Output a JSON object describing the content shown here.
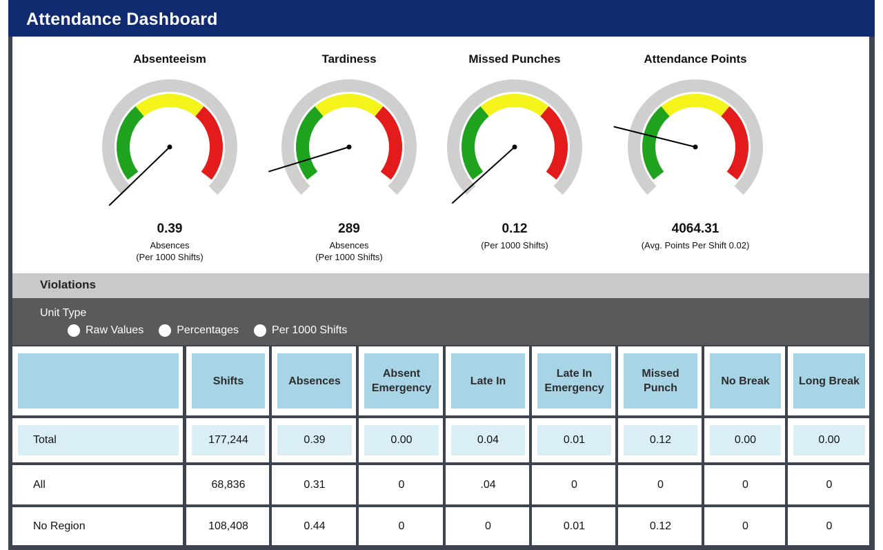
{
  "header": {
    "title": "Attendance Dashboard"
  },
  "colors": {
    "header_bg": "#0f2a6e",
    "gauge_track": "#cfcfcf",
    "gauge_green": "#1fa31f",
    "gauge_yellow": "#f4f41a",
    "gauge_red": "#e31b1b",
    "table_header": "#a8d5e6",
    "table_total": "#daeef6"
  },
  "gauges": [
    {
      "title": "Absenteeism",
      "value": "0.39",
      "sub1": "Absences",
      "sub2": "(Per 1000 Shifts)",
      "needle_angle_deg": 224
    },
    {
      "title": "Tardiness",
      "value": "289",
      "sub1": "Absences",
      "sub2": "(Per 1000 Shifts)",
      "needle_angle_deg": 197
    },
    {
      "title": "Missed Punches",
      "value": "0.12",
      "sub1": "(Per 1000 Shifts)",
      "sub2": "",
      "needle_angle_deg": 222
    },
    {
      "title": "Attendance Points",
      "value": "4064.31",
      "sub1": "(Avg. Points Per Shift 0.02)",
      "sub2": "",
      "needle_angle_deg": 166
    }
  ],
  "violations": {
    "title": "Violations",
    "unit_type_label": "Unit Type",
    "unit_options": [
      "Raw Values",
      "Percentages",
      "Per 1000 Shifts"
    ]
  },
  "table": {
    "columns": [
      "",
      "Shifts",
      "Absences",
      "Absent Emergency",
      "Late In",
      "Late In Emergency",
      "Missed Punch",
      "No Break",
      "Long Break"
    ],
    "rows": [
      {
        "label": "Total",
        "values": [
          "177,244",
          "0.39",
          "0.00",
          "0.04",
          "0.01",
          "0.12",
          "0.00",
          "0.00"
        ]
      },
      {
        "label": "All",
        "values": [
          "68,836",
          "0.31",
          "0",
          ".04",
          "0",
          "0",
          "0",
          "0"
        ]
      },
      {
        "label": "No Region",
        "values": [
          "108,408",
          "0.44",
          "0",
          "0",
          "0.01",
          "0.12",
          "0",
          "0"
        ]
      }
    ]
  }
}
